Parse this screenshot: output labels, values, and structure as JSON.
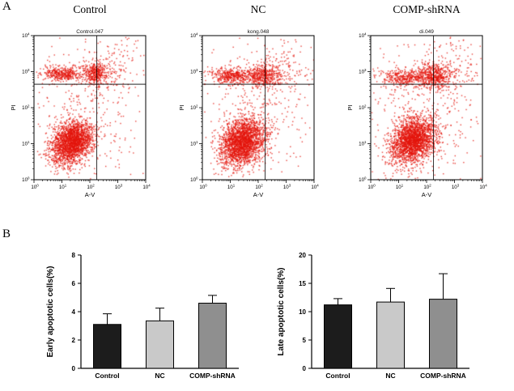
{
  "figure": {
    "panel_a_label": "A",
    "panel_b_label": "B"
  },
  "chart_data": [
    {
      "type": "scatter",
      "panel": "A",
      "title": "Control",
      "inner_label": "Control.047",
      "xlabel": "A-V",
      "ylabel": "PI",
      "x_log_range": [
        0,
        4
      ],
      "y_log_range": [
        0,
        4
      ],
      "tick_exponents": [
        0,
        1,
        2,
        3,
        4
      ],
      "quadrant_x_log": 2.25,
      "quadrant_y_log": 2.65,
      "dot_color": "#e4150c",
      "seed": 101,
      "clusters": [
        {
          "cx": 1.35,
          "cy": 1.05,
          "sx": 0.36,
          "sy": 0.3,
          "rho": 0.25,
          "n": 2100
        },
        {
          "cx": 1.0,
          "cy": 2.95,
          "sx": 0.33,
          "sy": 0.1,
          "n": 300
        },
        {
          "cx": 2.2,
          "cy": 2.95,
          "sx": 0.22,
          "sy": 0.15,
          "n": 320
        },
        {
          "cx": 1.6,
          "cy": 2.95,
          "sx": 0.85,
          "sy": 0.13,
          "n": 180
        },
        {
          "cx": 1.8,
          "cy": 1.8,
          "sx": 1.0,
          "sy": 1.0,
          "n": 320
        },
        {
          "cx": 2.8,
          "cy": 3.2,
          "sx": 0.55,
          "sy": 0.45,
          "n": 110
        }
      ]
    },
    {
      "type": "scatter",
      "panel": "A",
      "title": "NC",
      "inner_label": "kong.048",
      "xlabel": "A-V",
      "ylabel": "PI",
      "x_log_range": [
        0,
        4
      ],
      "y_log_range": [
        0,
        4
      ],
      "tick_exponents": [
        0,
        1,
        2,
        3,
        4
      ],
      "quadrant_x_log": 2.25,
      "quadrant_y_log": 2.65,
      "dot_color": "#e4150c",
      "seed": 202,
      "clusters": [
        {
          "cx": 1.4,
          "cy": 1.05,
          "sx": 0.4,
          "sy": 0.32,
          "rho": 0.25,
          "n": 2200
        },
        {
          "cx": 1.05,
          "cy": 2.9,
          "sx": 0.38,
          "sy": 0.11,
          "n": 340
        },
        {
          "cx": 2.2,
          "cy": 2.9,
          "sx": 0.25,
          "sy": 0.16,
          "n": 340
        },
        {
          "cx": 1.6,
          "cy": 2.9,
          "sx": 0.9,
          "sy": 0.13,
          "n": 200
        },
        {
          "cx": 1.8,
          "cy": 1.8,
          "sx": 1.0,
          "sy": 1.0,
          "n": 350
        },
        {
          "cx": 2.9,
          "cy": 3.1,
          "sx": 0.5,
          "sy": 0.45,
          "n": 130
        }
      ]
    },
    {
      "type": "scatter",
      "panel": "A",
      "title": "COMP-shRNA",
      "inner_label": "di.049",
      "xlabel": "A-V",
      "ylabel": "PI",
      "x_log_range": [
        0,
        4
      ],
      "y_log_range": [
        0,
        4
      ],
      "tick_exponents": [
        0,
        1,
        2,
        3,
        4
      ],
      "quadrant_x_log": 2.25,
      "quadrant_y_log": 2.65,
      "dot_color": "#e4150c",
      "seed": 303,
      "clusters": [
        {
          "cx": 1.5,
          "cy": 1.1,
          "sx": 0.4,
          "sy": 0.32,
          "rho": 0.25,
          "n": 2200
        },
        {
          "cx": 1.2,
          "cy": 2.85,
          "sx": 0.45,
          "sy": 0.12,
          "n": 280
        },
        {
          "cx": 2.25,
          "cy": 2.9,
          "sx": 0.28,
          "sy": 0.17,
          "n": 400
        },
        {
          "cx": 1.7,
          "cy": 2.9,
          "sx": 0.9,
          "sy": 0.13,
          "n": 180
        },
        {
          "cx": 1.9,
          "cy": 1.8,
          "sx": 1.0,
          "sy": 1.0,
          "n": 380
        },
        {
          "cx": 2.9,
          "cy": 3.15,
          "sx": 0.5,
          "sy": 0.45,
          "n": 140
        }
      ]
    },
    {
      "type": "bar",
      "panel": "B",
      "ylabel": "Early apoptotic cells(%)",
      "categories": [
        "Control",
        "NC",
        "COMP-shRNA"
      ],
      "values": [
        3.1,
        3.35,
        4.6
      ],
      "errors": [
        0.75,
        0.9,
        0.55
      ],
      "bar_colors": [
        "#1c1c1c",
        "#c9c9c9",
        "#8f8f8f"
      ],
      "ylim": [
        0,
        8
      ],
      "yticks": [
        0,
        2,
        4,
        6,
        8
      ]
    },
    {
      "type": "bar",
      "panel": "B",
      "ylabel": "Late apoptotic cells(%)",
      "categories": [
        "Control",
        "NC",
        "COMP-shRNA"
      ],
      "values": [
        11.2,
        11.7,
        12.2
      ],
      "errors": [
        1.1,
        2.4,
        4.5
      ],
      "bar_colors": [
        "#1c1c1c",
        "#c9c9c9",
        "#8f8f8f"
      ],
      "ylim": [
        0,
        20
      ],
      "yticks": [
        0,
        5,
        10,
        15,
        20
      ]
    }
  ]
}
